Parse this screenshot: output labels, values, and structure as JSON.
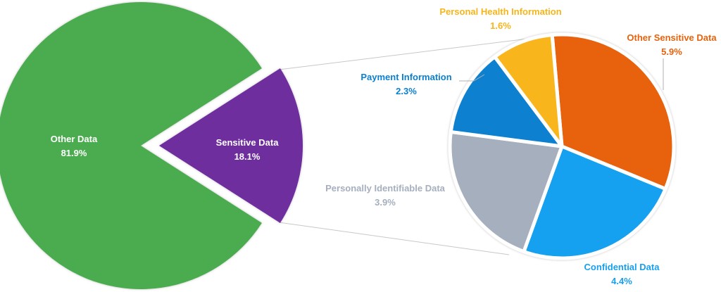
{
  "chart_data": {
    "type": "pie",
    "subtype": "pie-of-pie",
    "title": "",
    "main_pie": {
      "slices": [
        {
          "label": "Other Data",
          "value": 81.9,
          "display": "81.9%",
          "color": "#4CAC4F"
        },
        {
          "label": "Sensitive Data",
          "value": 18.1,
          "display": "18.1%",
          "color": "#6E2F9E",
          "exploded": true
        }
      ]
    },
    "secondary_pie": {
      "parent": "Sensitive Data",
      "slices": [
        {
          "label": "Other Sensitive Data",
          "value": 5.9,
          "display": "5.9%",
          "color": "#E8620C"
        },
        {
          "label": "Confidential Data",
          "value": 4.4,
          "display": "4.4%",
          "color": "#17A0F0"
        },
        {
          "label": "Personally Identifiable Data",
          "value": 3.9,
          "display": "3.9%",
          "color": "#A6AFBE"
        },
        {
          "label": "Payment Information",
          "value": 2.3,
          "display": "2.3%",
          "color": "#0B80CF"
        },
        {
          "label": "Personal Health Information",
          "value": 1.6,
          "display": "1.6%",
          "color": "#F8B51A"
        }
      ]
    },
    "label_colors": {
      "Other Data": "#FFFFFF",
      "Sensitive Data": "#FFFFFF",
      "Other Sensitive Data": "#E8620C",
      "Confidential Data": "#17A0F0",
      "Personally Identifiable Data": "#A6AFBE",
      "Payment Information": "#0B80CF",
      "Personal Health Information": "#F8B51A"
    },
    "legend": null,
    "unit": "%"
  }
}
